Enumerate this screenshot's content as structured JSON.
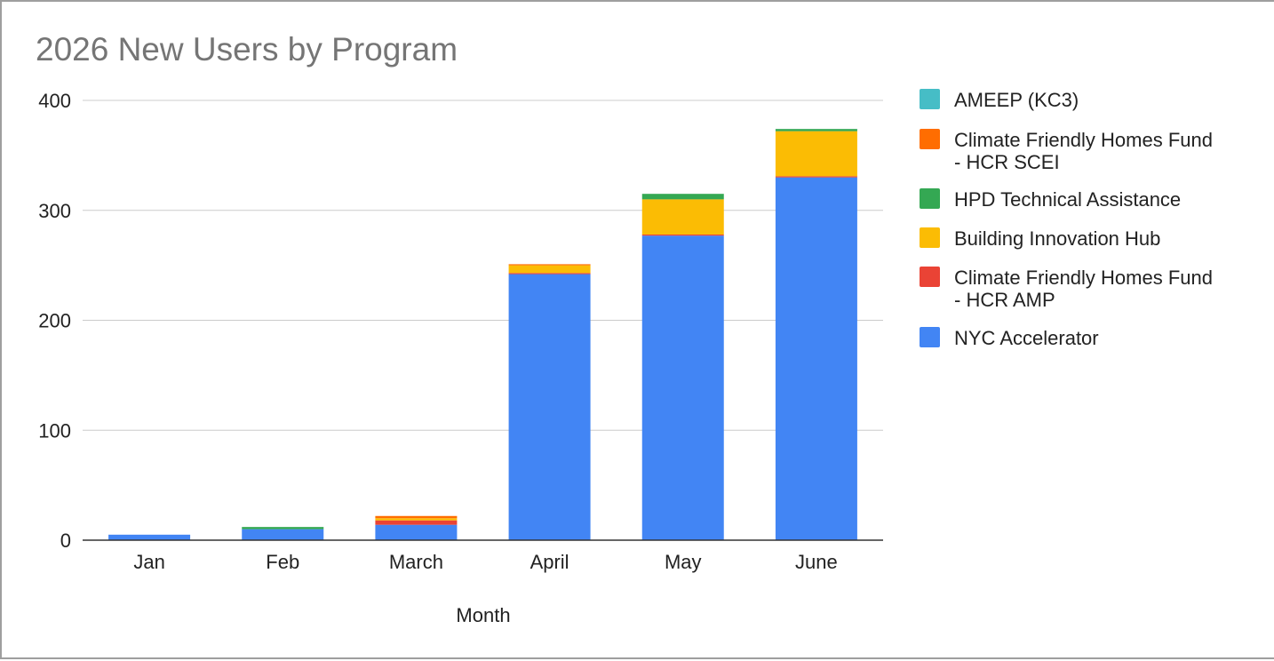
{
  "chart_data": {
    "type": "bar",
    "stacked": true,
    "title": "2026 New Users by Program",
    "xlabel": "Month",
    "ylabel": "",
    "ylim": [
      0,
      400
    ],
    "yticks": [
      0,
      100,
      200,
      300,
      400
    ],
    "grid": true,
    "legend_position": "right",
    "categories": [
      "Jan",
      "Feb",
      "March",
      "April",
      "May",
      "June"
    ],
    "series": [
      {
        "name": "NYC Accelerator",
        "color": "#4285f4",
        "values": [
          5,
          10,
          14,
          242,
          277,
          330
        ]
      },
      {
        "name": "Climate Friendly Homes Fund - HCR AMP",
        "color": "#ea4335",
        "values": [
          0,
          0,
          4,
          1,
          1,
          1
        ]
      },
      {
        "name": "Building Innovation Hub",
        "color": "#fbbc04",
        "values": [
          0,
          0,
          2,
          7,
          32,
          41
        ]
      },
      {
        "name": "HPD Technical Assistance",
        "color": "#34a853",
        "values": [
          0,
          2,
          0,
          0,
          5,
          2
        ]
      },
      {
        "name": "Climate Friendly Homes Fund - HCR SCEI",
        "color": "#ff6d01",
        "values": [
          0,
          0,
          2,
          1,
          0,
          0
        ]
      },
      {
        "name": "AMEEP (KC3)",
        "color": "#46bdc6",
        "values": [
          0,
          0,
          0,
          0,
          0,
          0
        ]
      }
    ],
    "legend_order": [
      5,
      4,
      3,
      2,
      1,
      0
    ],
    "legend_lines": [
      [
        "AMEEP (KC3)"
      ],
      [
        "Climate Friendly Homes Fund",
        "- HCR SCEI"
      ],
      [
        "HPD Technical Assistance"
      ],
      [
        "Building Innovation Hub"
      ],
      [
        "Climate Friendly Homes Fund",
        "- HCR AMP"
      ],
      [
        "NYC Accelerator"
      ]
    ]
  }
}
